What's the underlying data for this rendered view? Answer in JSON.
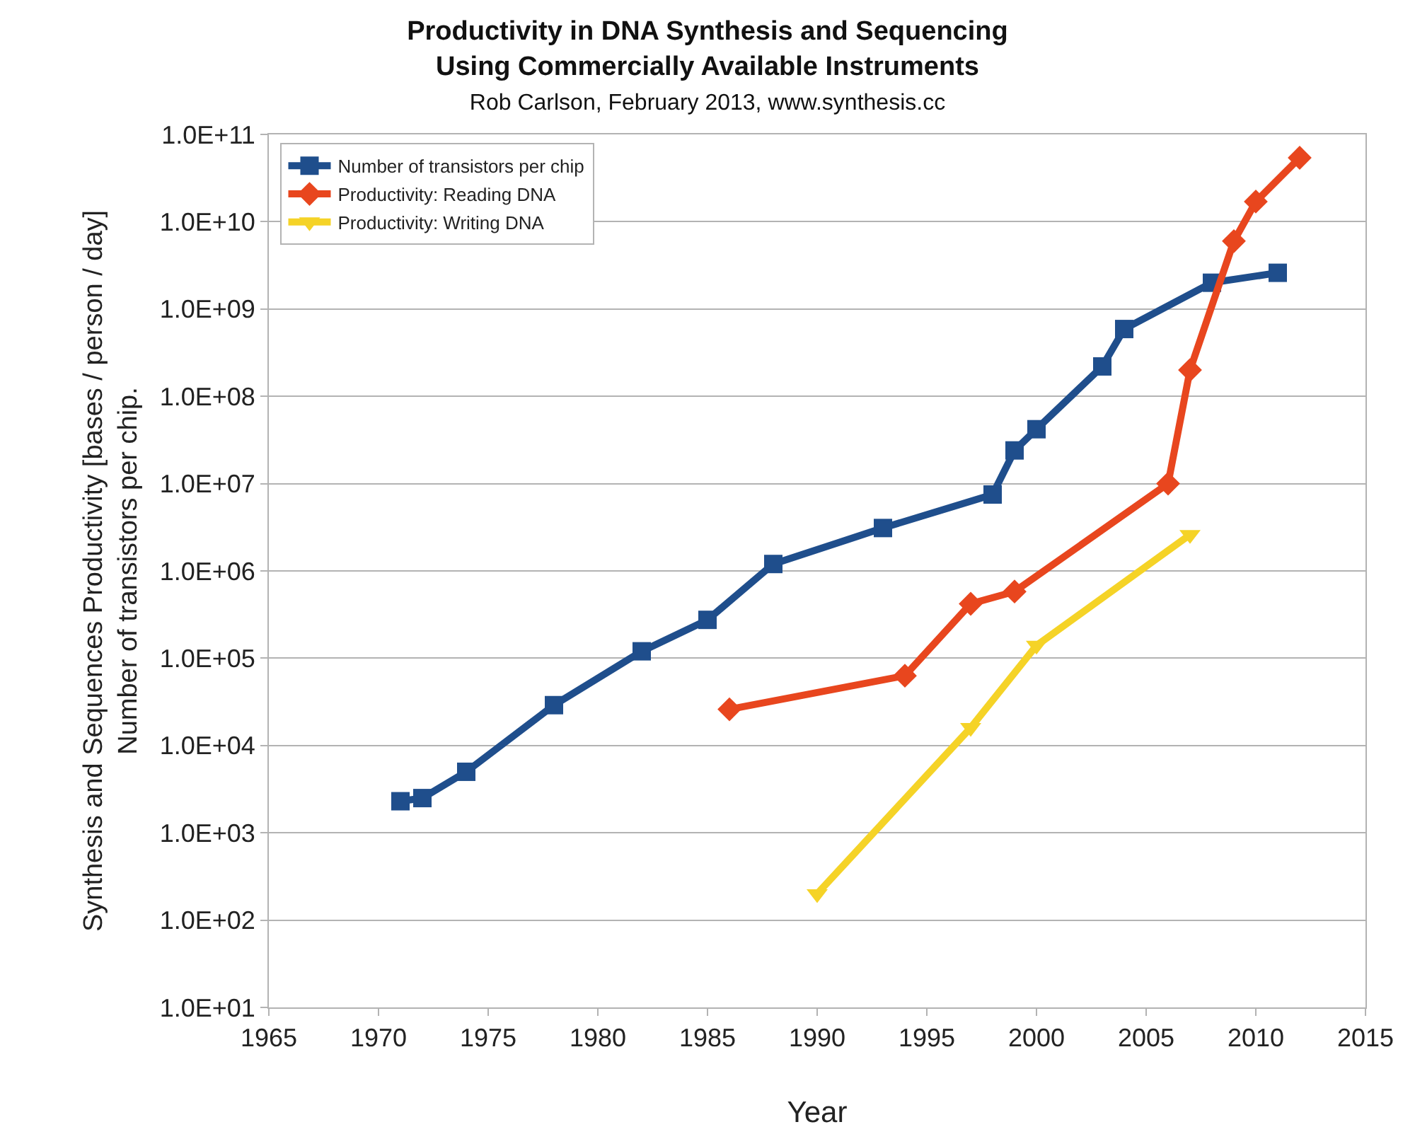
{
  "chart_data": {
    "type": "line",
    "title": "Productivity in DNA Synthesis and Sequencing\nUsing Commercially Available Instruments",
    "subtitle": "Rob Carlson, February 2013, www.synthesis.cc",
    "xlabel": "Year",
    "ylabel": "Synthesis and Sequences Productivity [bases / person / day]\nNumber of transistors per chip.",
    "log": "y",
    "grid": "y",
    "legend": "top left",
    "line_style": "solid",
    "xlim": [
      1965,
      2015
    ],
    "xticks": [
      1965,
      1970,
      1975,
      1980,
      1985,
      1990,
      1995,
      2000,
      2005,
      2010,
      2015
    ],
    "ylim": [
      10,
      100000000000
    ],
    "yticks": [
      {
        "value": 10,
        "label": "1.0E+01"
      },
      {
        "value": 100,
        "label": "1.0E+02"
      },
      {
        "value": 1000,
        "label": "1.0E+03"
      },
      {
        "value": 10000,
        "label": "1.0E+04"
      },
      {
        "value": 100000,
        "label": "1.0E+05"
      },
      {
        "value": 1000000,
        "label": "1.0E+06"
      },
      {
        "value": 10000000,
        "label": "1.0E+07"
      },
      {
        "value": 100000000,
        "label": "1.0E+08"
      },
      {
        "value": 1000000000,
        "label": "1.0E+09"
      },
      {
        "value": 10000000000,
        "label": "1.0E+10"
      },
      {
        "value": 100000000000,
        "label": "1.0E+11"
      }
    ],
    "series": [
      {
        "name": "Number of transistors per chip",
        "color": "#1f4e8c",
        "marker": "square",
        "x": [
          1971,
          1972,
          1974,
          1978,
          1982,
          1985,
          1988,
          1993,
          1998,
          1999,
          2000,
          2003,
          2004,
          2008,
          2011
        ],
        "values": [
          2300,
          2500,
          5000,
          29000,
          120000,
          275000,
          1200000,
          3100000,
          7500000,
          24000000,
          42000000,
          220000000,
          590000000,
          2000000000,
          2600000000
        ]
      },
      {
        "name": "Productivity: Reading DNA",
        "color": "#e8461e",
        "marker": "diamond",
        "x": [
          1986,
          1994,
          1997,
          1999,
          2006,
          2007,
          2009,
          2010,
          2012
        ],
        "values": [
          26000,
          63000,
          420000,
          580000,
          10000000,
          200000000,
          6000000000,
          17000000000,
          54000000000
        ]
      },
      {
        "name": "Productivity: Writing DNA",
        "color": "#f5d327",
        "marker": "triangle",
        "x": [
          1990,
          1997,
          2000,
          2007
        ],
        "values": [
          200,
          16000,
          140000,
          2600000
        ]
      }
    ]
  }
}
